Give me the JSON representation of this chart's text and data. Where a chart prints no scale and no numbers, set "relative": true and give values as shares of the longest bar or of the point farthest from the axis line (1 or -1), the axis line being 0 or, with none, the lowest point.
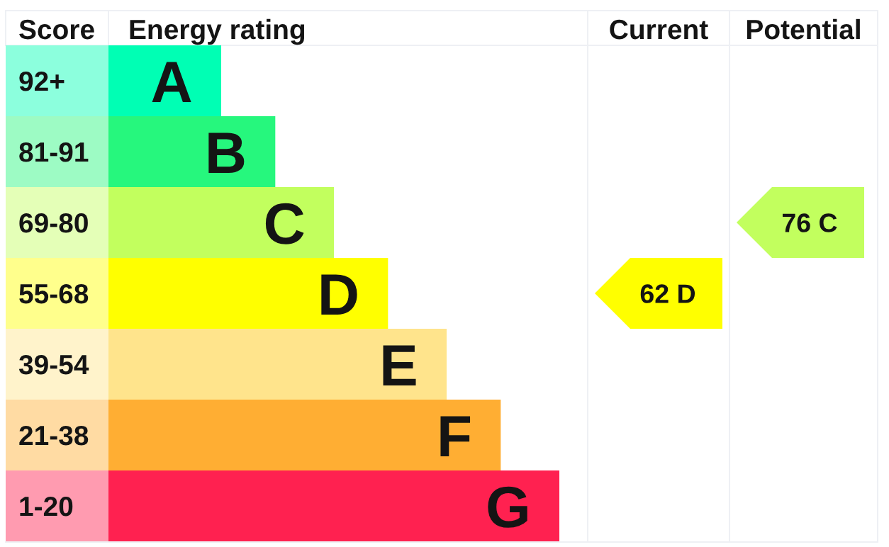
{
  "chart_data": [
    {
      "type": "bar",
      "orientation": "horizontal",
      "relative": true,
      "ylabel": "Score",
      "xlabel": "Energy rating",
      "categories": [
        "92+",
        "81-91",
        "69-80",
        "55-68",
        "39-54",
        "21-38",
        "1-20"
      ],
      "values": [
        0.25,
        0.37,
        0.5,
        0.62,
        0.75,
        0.87,
        1
      ],
      "colors": [
        "#00ffb4",
        "#26f77d",
        "#c2ff5e",
        "#ffff00",
        "#ffe48c",
        "#ffae33",
        "#ff2150"
      ],
      "annotations": [
        {
          "text": "A",
          "x": 0.25,
          "y": "92+"
        },
        {
          "text": "B",
          "x": 0.37,
          "y": "81-91"
        },
        {
          "text": "C",
          "x": 0.5,
          "y": "69-80"
        },
        {
          "text": "D",
          "x": 0.62,
          "y": "55-68"
        },
        {
          "text": "E",
          "x": 0.75,
          "y": "39-54"
        },
        {
          "text": "F",
          "x": 0.87,
          "y": "21-38"
        },
        {
          "text": "G",
          "x": 1,
          "y": "1-20"
        }
      ]
    },
    {
      "type": "other",
      "title": "Current",
      "categories": [
        null,
        null,
        null,
        null,
        null,
        null,
        null
      ],
      "values": [
        null,
        null,
        null,
        62,
        null,
        null,
        null
      ],
      "value_labels": [
        null,
        null,
        null,
        "62 D",
        null,
        null,
        null
      ],
      "color": "#ffff00"
    },
    {
      "type": "other",
      "title": "Potential",
      "categories": [
        null,
        null,
        null,
        null,
        null,
        null,
        null
      ],
      "values": [
        null,
        null,
        76,
        null,
        null,
        null,
        null
      ],
      "value_labels": [
        null,
        null,
        "76 C",
        null,
        null,
        null,
        null
      ],
      "color": "#c2ff5e"
    }
  ]
}
